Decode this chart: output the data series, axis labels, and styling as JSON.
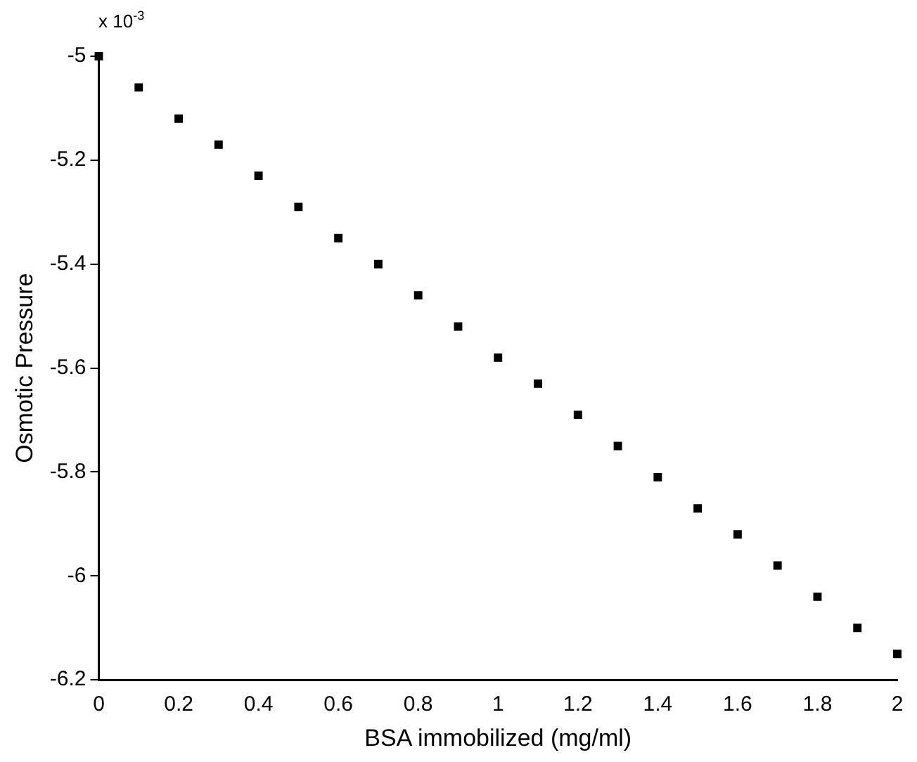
{
  "chart_data": {
    "type": "scatter",
    "xlabel": "BSA immobilized (mg/ml)",
    "ylabel": "Osmotic Pressure",
    "annotations": [
      "x 10$^{-3}$"
    ],
    "x": [
      0,
      0.1,
      0.2,
      0.3,
      0.4,
      0.5,
      0.6,
      0.7,
      0.8,
      0.9,
      1,
      1.1,
      1.2,
      1.3,
      1.4,
      1.5,
      1.6,
      1.7,
      1.8,
      1.9,
      2
    ],
    "series": [
      {
        "color": "#000000",
        "values": [
          -5.0,
          -5.06,
          -5.12,
          -5.17,
          -5.23,
          -5.29,
          -5.35,
          -5.4,
          -5.46,
          -5.52,
          -5.58,
          -5.63,
          -5.69,
          -5.75,
          -5.81,
          -5.87,
          -5.92,
          -5.98,
          -6.04,
          -6.1,
          -6.15
        ]
      }
    ],
    "xlim": [
      0,
      2
    ],
    "xticks": [
      0,
      0.2,
      0.4,
      0.6,
      0.8,
      1,
      1.2,
      1.4,
      1.6,
      1.8,
      2
    ],
    "ylim": [
      -6.2,
      -5
    ],
    "yticks": [
      -6.2,
      -6,
      -5.8,
      -5.6,
      -5.4,
      -5.2,
      -5
    ],
    "grid": false,
    "legend": false,
    "marker": "square"
  }
}
